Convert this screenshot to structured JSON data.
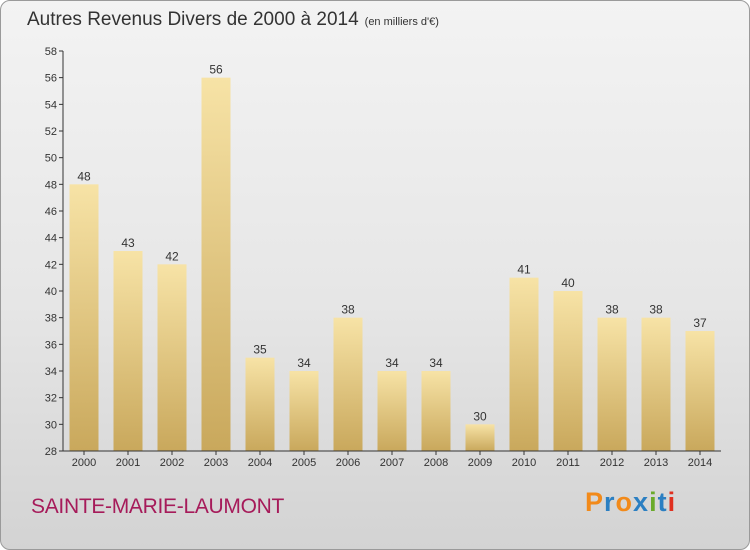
{
  "title": "Autres Revenus Divers de 2000 à 2014",
  "unit_note": "(en milliers d'€)",
  "city": "SAINTE-MARIE-LAUMONT",
  "brand": {
    "letters": [
      "P",
      "r",
      "o",
      "x",
      "i",
      "t",
      "i"
    ],
    "colors": [
      "#f28a1a",
      "#2b7fc2",
      "#f28a1a",
      "#2b7fc2",
      "#6aaa2a",
      "#2b7fc2",
      "#e03020"
    ]
  },
  "colors": {
    "bar_light": "#f7e3a6",
    "bar_dark": "#c9a85c",
    "city": "#a61b5a",
    "axis": "#333333"
  },
  "chart_data": {
    "type": "bar",
    "categories": [
      "2000",
      "2001",
      "2002",
      "2003",
      "2004",
      "2005",
      "2006",
      "2007",
      "2008",
      "2009",
      "2010",
      "2011",
      "2012",
      "2013",
      "2014"
    ],
    "values": [
      48,
      43,
      42,
      56,
      35,
      34,
      38,
      34,
      34,
      30,
      41,
      40,
      38,
      38,
      37
    ],
    "title": "Autres Revenus Divers de 2000 à 2014",
    "xlabel": "",
    "ylabel": "",
    "ylim": [
      28,
      58
    ],
    "yticks": [
      28,
      30,
      32,
      34,
      36,
      38,
      40,
      42,
      44,
      46,
      48,
      50,
      52,
      54,
      56,
      58
    ],
    "grid": false,
    "data_labels": true
  }
}
